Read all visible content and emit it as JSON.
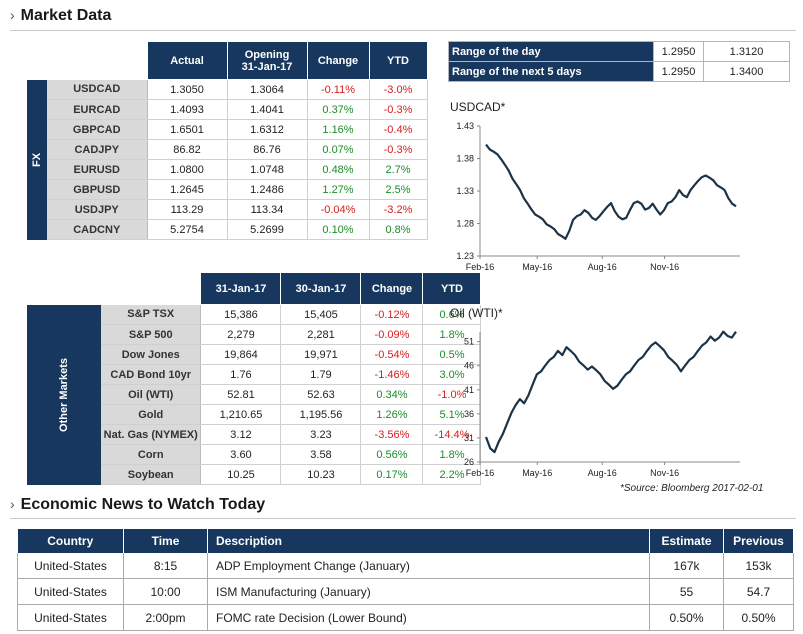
{
  "market_title": "Market Data",
  "news_title": "Economic News to Watch Today",
  "fx": {
    "sidebar_label": "FX",
    "headers": [
      "Actual",
      "Opening",
      "Change",
      "YTD"
    ],
    "opening_date": "31-Jan-17",
    "rows": [
      {
        "label": "USDCAD",
        "actual": "1.3050",
        "opening": "1.3064",
        "change": "-0.11%",
        "ytd": "-3.0%"
      },
      {
        "label": "EURCAD",
        "actual": "1.4093",
        "opening": "1.4041",
        "change": "0.37%",
        "ytd": "-0.3%"
      },
      {
        "label": "GBPCAD",
        "actual": "1.6501",
        "opening": "1.6312",
        "change": "1.16%",
        "ytd": "-0.4%"
      },
      {
        "label": "CADJPY",
        "actual": "86.82",
        "opening": "86.76",
        "change": "0.07%",
        "ytd": "-0.3%"
      },
      {
        "label": "EURUSD",
        "actual": "1.0800",
        "opening": "1.0748",
        "change": "0.48%",
        "ytd": "2.7%"
      },
      {
        "label": "GBPUSD",
        "actual": "1.2645",
        "opening": "1.2486",
        "change": "1.27%",
        "ytd": "2.5%"
      },
      {
        "label": "USDJPY",
        "actual": "113.29",
        "opening": "113.34",
        "change": "-0.04%",
        "ytd": "-3.2%"
      },
      {
        "label": "CADCNY",
        "actual": "5.2754",
        "opening": "5.2699",
        "change": "0.10%",
        "ytd": "0.8%"
      }
    ]
  },
  "other": {
    "sidebar_label": "Other Markets",
    "headers": [
      "31-Jan-17",
      "30-Jan-17",
      "Change",
      "YTD"
    ],
    "rows": [
      {
        "label": "S&P TSX",
        "a": "15,386",
        "b": "15,405",
        "change": "-0.12%",
        "ytd": "0.6%"
      },
      {
        "label": "S&P 500",
        "a": "2,279",
        "b": "2,281",
        "change": "-0.09%",
        "ytd": "1.8%"
      },
      {
        "label": "Dow Jones",
        "a": "19,864",
        "b": "19,971",
        "change": "-0.54%",
        "ytd": "0.5%"
      },
      {
        "label": "CAD Bond 10yr",
        "a": "1.76",
        "b": "1.79",
        "change": "-1.46%",
        "ytd": "3.0%"
      },
      {
        "label": "Oil (WTI)",
        "a": "52.81",
        "b": "52.63",
        "change": "0.34%",
        "ytd": "-1.0%"
      },
      {
        "label": "Gold",
        "a": "1,210.65",
        "b": "1,195.56",
        "change": "1.26%",
        "ytd": "5.1%"
      },
      {
        "label": "Nat. Gas (NYMEX)",
        "a": "3.12",
        "b": "3.23",
        "change": "-3.56%",
        "ytd": "-14.4%"
      },
      {
        "label": "Corn",
        "a": "3.60",
        "b": "3.58",
        "change": "0.56%",
        "ytd": "1.8%"
      },
      {
        "label": "Soybean",
        "a": "10.25",
        "b": "10.23",
        "change": "0.17%",
        "ytd": "2.2%"
      }
    ]
  },
  "range": {
    "rows": [
      {
        "label": "Range of the day",
        "low": "1.2950",
        "high": "1.3120"
      },
      {
        "label": "Range of the next 5 days",
        "low": "1.2950",
        "high": "1.3400"
      }
    ]
  },
  "colors": {
    "navy": "#17375e",
    "positive": "#1e8a2a",
    "negative": "#d42020",
    "line": "#1c3347"
  },
  "chart_data": [
    {
      "type": "line",
      "title": "USDCAD*",
      "yticks": [
        "1.43",
        "1.38",
        "1.33",
        "1.28",
        "1.23"
      ],
      "ylim": [
        1.23,
        1.43
      ],
      "xticks": [
        "Feb-16",
        "May-16",
        "Aug-16",
        "Nov-16"
      ],
      "series": [
        {
          "values": [
            1.4,
            1.395,
            1.39,
            1.385,
            1.38,
            1.37,
            1.36,
            1.35,
            1.34,
            1.33,
            1.32,
            1.31,
            1.3,
            1.295,
            1.29,
            1.285,
            1.28,
            1.275,
            1.27,
            1.265,
            1.26,
            1.255,
            1.27,
            1.285,
            1.29,
            1.295,
            1.3,
            1.295,
            1.29,
            1.285,
            1.29,
            1.3,
            1.305,
            1.31,
            1.3,
            1.29,
            1.285,
            1.29,
            1.3,
            1.31,
            1.315,
            1.31,
            1.3,
            1.305,
            1.31,
            1.3,
            1.295,
            1.3,
            1.31,
            1.315,
            1.32,
            1.33,
            1.325,
            1.32,
            1.33,
            1.34,
            1.345,
            1.35,
            1.355,
            1.35,
            1.345,
            1.34,
            1.335,
            1.33,
            1.32,
            1.31,
            1.305
          ]
        }
      ]
    },
    {
      "type": "line",
      "title": "Oil (WTI)*",
      "yticks": [
        "51",
        "46",
        "41",
        "36",
        "31",
        "26"
      ],
      "ylim": [
        26,
        53
      ],
      "xticks": [
        "Feb-16",
        "May-16",
        "Aug-16",
        "Nov-16"
      ],
      "series": [
        {
          "values": [
            31,
            29,
            28,
            30,
            32,
            34,
            36,
            38,
            39,
            38,
            40,
            42,
            44,
            45,
            46,
            47,
            48,
            49,
            48,
            50,
            49,
            48,
            47,
            46,
            45,
            46,
            45,
            44,
            43,
            42,
            41,
            42,
            43,
            44,
            45,
            46,
            47,
            48,
            49,
            50,
            51,
            50,
            49,
            48,
            47,
            46,
            45,
            46,
            47,
            48,
            49,
            50,
            51,
            52,
            51,
            52,
            53,
            52,
            52,
            53
          ]
        }
      ]
    }
  ],
  "source_note": "*Source: Bloomberg  2017-02-01",
  "news": {
    "headers": [
      "Country",
      "Time",
      "Description",
      "Estimate",
      "Previous"
    ],
    "rows": [
      {
        "country": "United-States",
        "time": "8:15",
        "desc": "ADP Employment Change (January)",
        "estimate": "167k",
        "previous": "153k"
      },
      {
        "country": "United-States",
        "time": "10:00",
        "desc": "ISM Manufacturing (January)",
        "estimate": "55",
        "previous": "54.7"
      },
      {
        "country": "United-States",
        "time": "2:00pm",
        "desc": "FOMC rate Decision (Lower Bound)",
        "estimate": "0.50%",
        "previous": "0.50%"
      }
    ]
  }
}
